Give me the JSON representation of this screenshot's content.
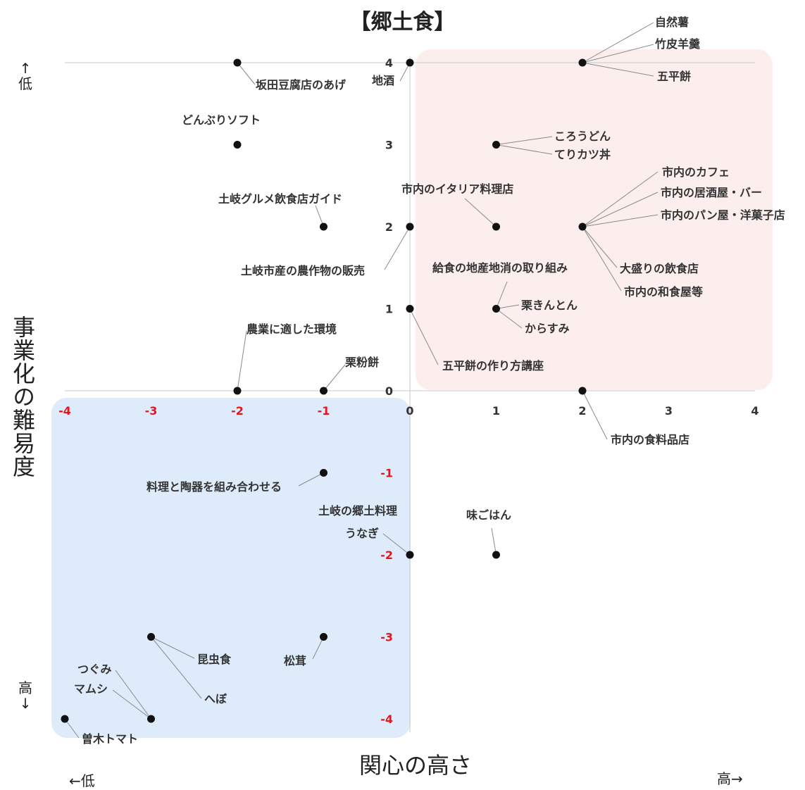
{
  "chart_data": {
    "type": "scatter",
    "title": "【郷土食】",
    "xlabel": "関心の高さ",
    "ylabel": "事業化の難易度",
    "x_low_label": "←低",
    "x_high_label": "高→",
    "y_low_label": "↑\n低",
    "y_high_label": "高\n↓",
    "xlim": [
      -4,
      4
    ],
    "ylim": [
      -4,
      4
    ],
    "grid": false,
    "x_ticks_positive": [
      "1",
      "2",
      "3",
      "4"
    ],
    "x_ticks_negative": [
      "-4",
      "-3",
      "-2",
      "-1"
    ],
    "x_tick_zero": "0",
    "y_ticks_positive": [
      "4",
      "3",
      "2",
      "1",
      "0"
    ],
    "y_ticks_negative": [
      "-1",
      "-2",
      "-3",
      "-4"
    ],
    "colors": {
      "negative_tick": "#e8141c",
      "positive_tick": "#333333",
      "quadrant_high_interest": "#fdeeee",
      "quadrant_low_interest": "#deebfb",
      "point": "#111111"
    },
    "points": [
      {
        "label": "坂田豆腐店のあげ",
        "x": -2,
        "y": 4
      },
      {
        "label": "地酒",
        "x": 0,
        "y": 4
      },
      {
        "label": "自然薯",
        "x": 2,
        "y": 4
      },
      {
        "label": "竹皮羊羹",
        "x": 2,
        "y": 4
      },
      {
        "label": "五平餅",
        "x": 2,
        "y": 4
      },
      {
        "label": "どんぶりソフト",
        "x": -2,
        "y": 3
      },
      {
        "label": "ころうどん",
        "x": 1,
        "y": 3
      },
      {
        "label": "てりカツ丼",
        "x": 1,
        "y": 3
      },
      {
        "label": "土岐グルメ飲食店ガイド",
        "x": -1,
        "y": 2
      },
      {
        "label": "土岐市産の農作物の販売",
        "x": 0,
        "y": 2
      },
      {
        "label": "市内のイタリア料理店",
        "x": 1,
        "y": 2
      },
      {
        "label": "市内のカフェ",
        "x": 2,
        "y": 2
      },
      {
        "label": "市内の居酒屋・バー",
        "x": 2,
        "y": 2
      },
      {
        "label": "市内のパン屋・洋菓子店",
        "x": 2,
        "y": 2
      },
      {
        "label": "大盛りの飲食店",
        "x": 2,
        "y": 2
      },
      {
        "label": "市内の和食屋等",
        "x": 2,
        "y": 2
      },
      {
        "label": "五平餅の作り方講座",
        "x": 0,
        "y": 1
      },
      {
        "label": "給食の地産地消の取り組み",
        "x": 1,
        "y": 1
      },
      {
        "label": "栗きんとん",
        "x": 1,
        "y": 1
      },
      {
        "label": "からすみ",
        "x": 1,
        "y": 1
      },
      {
        "label": "農業に適した環境",
        "x": -2,
        "y": 0
      },
      {
        "label": "栗粉餅",
        "x": -1,
        "y": 0
      },
      {
        "label": "市内の食料品店",
        "x": 2,
        "y": 0
      },
      {
        "label": "料理と陶器を組み合わせる",
        "x": -1,
        "y": -1
      },
      {
        "label": "土岐の郷土料理",
        "x": 0,
        "y": -2
      },
      {
        "label": "うなぎ",
        "x": 0,
        "y": -2
      },
      {
        "label": "味ごはん",
        "x": 1,
        "y": -2
      },
      {
        "label": "昆虫食",
        "x": -3,
        "y": -3
      },
      {
        "label": "へぼ",
        "x": -3,
        "y": -3
      },
      {
        "label": "松茸",
        "x": -1,
        "y": -3
      },
      {
        "label": "つぐみ",
        "x": -3,
        "y": -4
      },
      {
        "label": "マムシ",
        "x": -3,
        "y": -4
      },
      {
        "label": "曽木トマト",
        "x": -4,
        "y": -4
      }
    ]
  }
}
